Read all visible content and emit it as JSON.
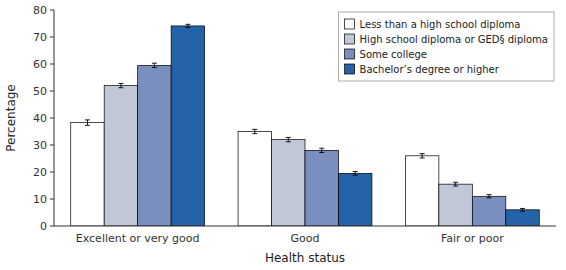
{
  "chart_data": {
    "type": "bar",
    "categories": [
      "Excellent or very good",
      "Good",
      "Fair or poor"
    ],
    "series": [
      {
        "name": "Less than a high school diploma",
        "color": "#ffffff",
        "values": [
          38.3,
          35.0,
          26.0
        ],
        "errors": [
          1.0,
          0.8,
          0.8
        ]
      },
      {
        "name": "High school diploma or GED§ diploma",
        "color": "#c0c8d8",
        "values": [
          52.0,
          32.0,
          15.5
        ],
        "errors": [
          0.8,
          0.8,
          0.7
        ]
      },
      {
        "name": "Some college",
        "color": "#7b8fbe",
        "values": [
          59.5,
          28.0,
          11.0
        ],
        "errors": [
          0.8,
          0.8,
          0.6
        ]
      },
      {
        "name": "Bachelor’s degree or higher",
        "color": "#2563a8",
        "values": [
          74.1,
          19.5,
          6.0
        ],
        "errors": [
          0.6,
          0.7,
          0.5
        ]
      }
    ],
    "xlabel": "Health status",
    "ylabel": "Percentage",
    "ylim": [
      0,
      80
    ],
    "yticks": [
      0,
      10,
      20,
      30,
      40,
      50,
      60,
      70,
      80
    ],
    "grid": false,
    "legend": "upper right"
  }
}
